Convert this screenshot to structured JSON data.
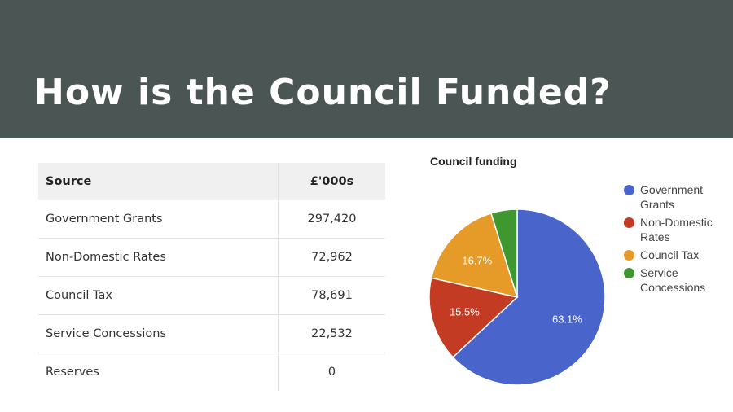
{
  "page": {
    "title": "How is the Council Funded?"
  },
  "table": {
    "headers": [
      "Source",
      "£'000s"
    ],
    "rows": [
      {
        "source": "Government Grants",
        "value": "297,420"
      },
      {
        "source": "Non-Domestic Rates",
        "value": "72,962"
      },
      {
        "source": "Council Tax",
        "value": "78,691"
      },
      {
        "source": "Service Concessions",
        "value": "22,532"
      },
      {
        "source": "Reserves",
        "value": "0"
      }
    ]
  },
  "chart_data": {
    "type": "pie",
    "title": "Council funding",
    "legend_position": "right",
    "slices": [
      {
        "name": "Government Grants",
        "value": 63.1,
        "label": "63.1%",
        "color": "#4965cc"
      },
      {
        "name": "Non-Domestic Rates",
        "value": 15.5,
        "label": "15.5%",
        "color": "#c23b22"
      },
      {
        "name": "Council Tax",
        "value": 16.7,
        "label": "16.7%",
        "color": "#e69a28"
      },
      {
        "name": "Service Concessions",
        "value": 4.8,
        "label": "",
        "color": "#3f982f"
      }
    ]
  },
  "colors": {
    "header_bg": "#4b5553",
    "title_text": "#ffffff"
  }
}
